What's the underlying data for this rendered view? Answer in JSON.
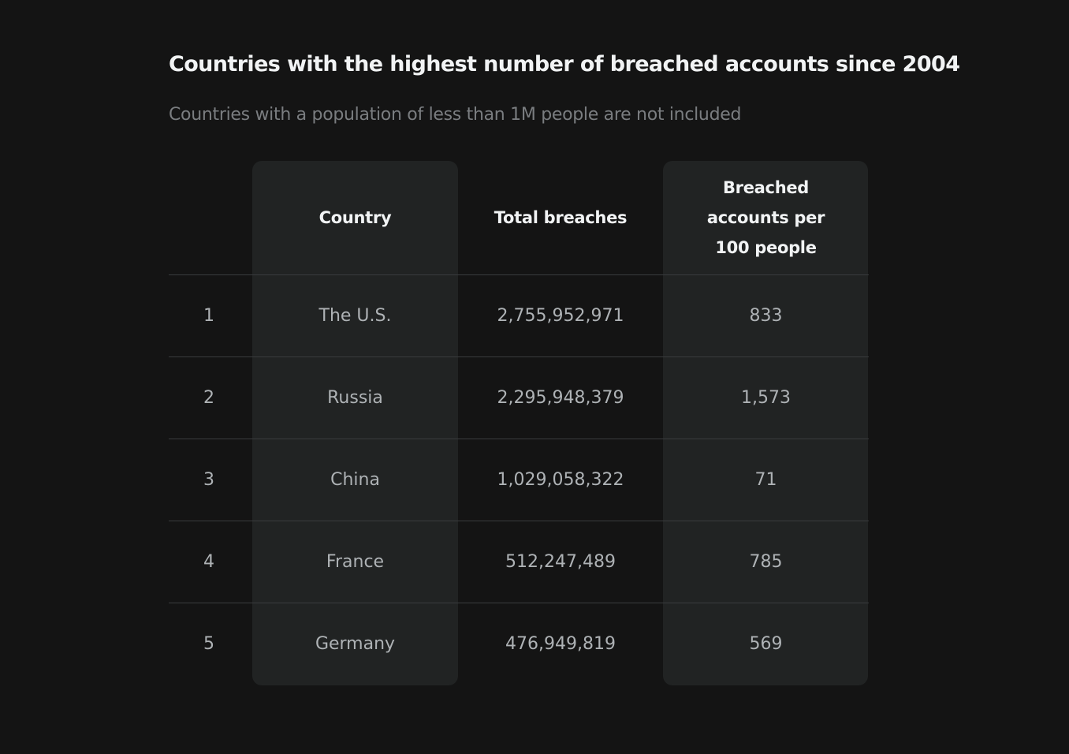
{
  "chart_data": {
    "type": "table",
    "title": "Countries with the highest number of breached accounts since 2004",
    "subtitle": "Countries with a population of less than 1M people are not included",
    "columns": [
      "",
      "Country",
      "Total breaches",
      "Breached accounts per 100 people"
    ],
    "rows": [
      {
        "rank": "1",
        "country": "The U.S.",
        "total": "2,755,952,971",
        "per100": "833"
      },
      {
        "rank": "2",
        "country": "Russia",
        "total": "2,295,948,379",
        "per100": "1,573"
      },
      {
        "rank": "3",
        "country": "China",
        "total": "1,029,058,322",
        "per100": "71"
      },
      {
        "rank": "4",
        "country": "France",
        "total": "512,247,489",
        "per100": "785"
      },
      {
        "rank": "5",
        "country": "Germany",
        "total": "476,949,819",
        "per100": "569"
      }
    ]
  },
  "colors": {
    "background": "#141414",
    "highlight_column": "#212323",
    "heading_text": "#f1f3f4",
    "muted_text": "#7a7d80",
    "cell_text": "#aeb2b5",
    "divider": "#3a3c3e"
  }
}
